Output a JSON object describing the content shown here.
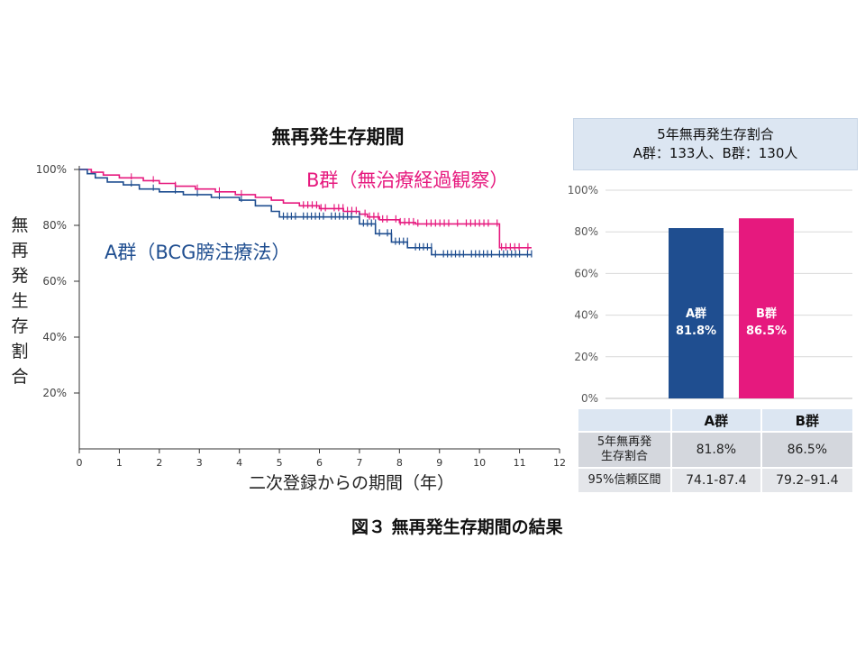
{
  "km_title": "無再発生存期間",
  "caption": "図３ 無再発生存期間の結果",
  "rate_header": {
    "line1": "5年無再発生存割合",
    "line2": "A群：133人、B群：130人"
  },
  "table": {
    "columns": [
      "A群",
      "B群"
    ],
    "rows": [
      {
        "label_line1": "5年無再発",
        "label_line2": "生存割合",
        "values": [
          "81.8%",
          "86.5%"
        ]
      },
      {
        "label_line1": "95%信頼区間",
        "label_line2": "",
        "values": [
          "74.1-87.4",
          "79.2–91.4"
        ]
      }
    ]
  },
  "colors": {
    "group_a": "#1f4e90",
    "group_b": "#e6197e"
  },
  "chart_data": [
    {
      "type": "line",
      "title": "無再発生存期間",
      "xlabel": "二次登録からの期間（年）",
      "ylabel": "無再発生存割合",
      "xlim": [
        0,
        12
      ],
      "ylim": [
        0,
        100
      ],
      "x_ticks": [
        "0",
        "1",
        "2",
        "3",
        "4",
        "5",
        "6",
        "7",
        "8",
        "9",
        "10",
        "11",
        "12"
      ],
      "y_ticks": [
        "100%",
        "80%",
        "60%",
        "40%",
        "20%"
      ],
      "grid": false,
      "series": [
        {
          "name": "B群（無治療経過観察）",
          "x": [
            0,
            0.3,
            0.6,
            1.0,
            1.6,
            2.0,
            2.4,
            2.9,
            3.4,
            3.9,
            4.4,
            4.8,
            5.1,
            5.5,
            6.0,
            6.6,
            7.0,
            7.2,
            7.5,
            8.0,
            8.4,
            10.5,
            11.0,
            11.3
          ],
          "y": [
            100,
            99,
            98,
            97,
            96,
            95,
            94,
            93,
            92,
            91,
            90,
            89,
            88,
            87,
            86,
            85,
            84,
            83,
            82,
            81,
            80.5,
            72,
            72,
            72
          ]
        },
        {
          "name": "A群（BCG膀注療法）",
          "x": [
            0,
            0.2,
            0.4,
            0.7,
            1.1,
            1.5,
            2.0,
            2.6,
            3.3,
            4.0,
            4.4,
            4.8,
            5.0,
            7.0,
            7.4,
            7.8,
            8.2,
            8.8,
            11.3
          ],
          "y": [
            100,
            98.5,
            97,
            95.5,
            94.5,
            93,
            92,
            91,
            90,
            89,
            87,
            85,
            83,
            80.5,
            77,
            74,
            72,
            69.5,
            69.5
          ]
        }
      ]
    },
    {
      "type": "bar",
      "categories": [
        "A群",
        "B群"
      ],
      "values": [
        81.8,
        86.5
      ],
      "data_labels": [
        "81.8%",
        "86.5%"
      ],
      "ylim": [
        0,
        100
      ],
      "y_ticks": [
        "100%",
        "80%",
        "60%",
        "40%",
        "20%",
        "0%"
      ],
      "grid": true
    }
  ]
}
